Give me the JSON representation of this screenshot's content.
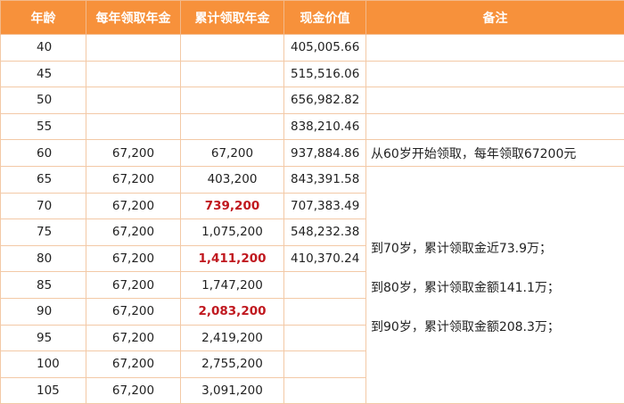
{
  "table": {
    "headers": [
      "年龄",
      "每年领取年金",
      "累计领取年金",
      "现金价值",
      "备注"
    ],
    "rows": [
      {
        "age": "40",
        "yearly": "",
        "cumulative": "",
        "cash": "405,005.66",
        "highlight": false
      },
      {
        "age": "45",
        "yearly": "",
        "cumulative": "",
        "cash": "515,516.06",
        "highlight": false
      },
      {
        "age": "50",
        "yearly": "",
        "cumulative": "",
        "cash": "656,982.82",
        "highlight": false
      },
      {
        "age": "55",
        "yearly": "",
        "cumulative": "",
        "cash": "838,210.46",
        "highlight": false
      },
      {
        "age": "60",
        "yearly": "67,200",
        "cumulative": "67,200",
        "cash": "937,884.86",
        "highlight": false
      },
      {
        "age": "65",
        "yearly": "67,200",
        "cumulative": "403,200",
        "cash": "843,391.58",
        "highlight": false
      },
      {
        "age": "70",
        "yearly": "67,200",
        "cumulative": "739,200",
        "cash": "707,383.49",
        "highlight": true
      },
      {
        "age": "75",
        "yearly": "67,200",
        "cumulative": "1,075,200",
        "cash": "548,232.38",
        "highlight": false
      },
      {
        "age": "80",
        "yearly": "67,200",
        "cumulative": "1,411,200",
        "cash": "410,370.24",
        "highlight": true
      },
      {
        "age": "85",
        "yearly": "67,200",
        "cumulative": "1,747,200",
        "cash": "",
        "highlight": false
      },
      {
        "age": "90",
        "yearly": "67,200",
        "cumulative": "2,083,200",
        "cash": "",
        "highlight": true
      },
      {
        "age": "95",
        "yearly": "67,200",
        "cumulative": "2,419,200",
        "cash": "",
        "highlight": false
      },
      {
        "age": "100",
        "yearly": "67,200",
        "cumulative": "2,755,200",
        "cash": "",
        "highlight": false
      },
      {
        "age": "105",
        "yearly": "67,200",
        "cumulative": "3,091,200",
        "cash": "",
        "highlight": false
      }
    ],
    "notes": {
      "age60": "从60岁开始领取，每年领取67200元",
      "age70": "到70岁，累计领取金近73.9万；",
      "age80": "到80岁，累计领取金额141.1万；",
      "age90": "到90岁，累计领取金额208.3万；"
    }
  },
  "colors": {
    "header_bg": "#f7913b",
    "header_text": "#ffffff",
    "border": "#f3c9a6",
    "highlight_text": "#c0181f"
  }
}
